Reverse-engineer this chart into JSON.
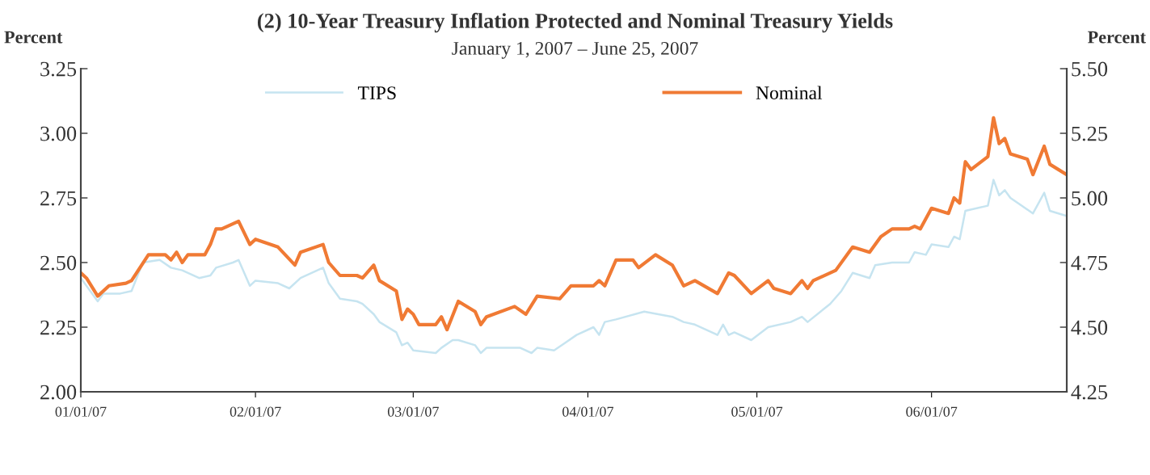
{
  "chart_data": {
    "type": "line",
    "title": "(2) 10-Year Treasury Inflation Protected and Nominal Treasury Yields",
    "subtitle": "January 1, 2007 – June 25, 2007",
    "ylabel": "Percent",
    "y2label": "Percent",
    "xlim": [
      "2007-01-01",
      "2007-06-25"
    ],
    "xticks": [
      {
        "value": "2007-01-01",
        "label": "01/01/07"
      },
      {
        "value": "2007-02-01",
        "label": "02/01/07"
      },
      {
        "value": "2007-03-01",
        "label": "03/01/07"
      },
      {
        "value": "2007-04-01",
        "label": "04/01/07"
      },
      {
        "value": "2007-05-01",
        "label": "05/01/07"
      },
      {
        "value": "2007-06-01",
        "label": "06/01/07"
      }
    ],
    "ylim": [
      2.0,
      3.25
    ],
    "yticks": [
      {
        "value": 2.0,
        "label": "2.00"
      },
      {
        "value": 2.25,
        "label": "2.25"
      },
      {
        "value": 2.5,
        "label": "2.50"
      },
      {
        "value": 2.75,
        "label": "2.75"
      },
      {
        "value": 3.0,
        "label": "3.00"
      },
      {
        "value": 3.25,
        "label": "3.25"
      }
    ],
    "y2lim": [
      4.25,
      5.5
    ],
    "y2ticks": [
      {
        "value": 4.25,
        "label": "4.25"
      },
      {
        "value": 4.5,
        "label": "4.50"
      },
      {
        "value": 4.75,
        "label": "4.75"
      },
      {
        "value": 5.0,
        "label": "5.00"
      },
      {
        "value": 5.25,
        "label": "5.25"
      },
      {
        "value": 5.5,
        "label": "5.50"
      }
    ],
    "grid": false,
    "legend": "top",
    "marker": "none",
    "line_style": "solid",
    "series": [
      {
        "name": "TIPS",
        "color": "#c6e4f0",
        "x": [
          "2007-01-01",
          "2007-01-04",
          "2007-01-05",
          "2007-01-08",
          "2007-01-10",
          "2007-01-12",
          "2007-01-15",
          "2007-01-17",
          "2007-01-19",
          "2007-01-22",
          "2007-01-24",
          "2007-01-25",
          "2007-01-28",
          "2007-01-29",
          "2007-01-31",
          "2007-02-01",
          "2007-02-05",
          "2007-02-07",
          "2007-02-09",
          "2007-02-13",
          "2007-02-14",
          "2007-02-16",
          "2007-02-19",
          "2007-02-20",
          "2007-02-22",
          "2007-02-23",
          "2007-02-26",
          "2007-02-27",
          "2007-02-28",
          "2007-03-01",
          "2007-03-05",
          "2007-03-06",
          "2007-03-08",
          "2007-03-09",
          "2007-03-12",
          "2007-03-13",
          "2007-03-14",
          "2007-03-19",
          "2007-03-20",
          "2007-03-22",
          "2007-03-23",
          "2007-03-26",
          "2007-03-28",
          "2007-03-30",
          "2007-04-02",
          "2007-04-03",
          "2007-04-04",
          "2007-04-06",
          "2007-04-11",
          "2007-04-16",
          "2007-04-18",
          "2007-04-20",
          "2007-04-23",
          "2007-04-24",
          "2007-04-25",
          "2007-04-26",
          "2007-04-27",
          "2007-04-30",
          "2007-05-03",
          "2007-05-07",
          "2007-05-09",
          "2007-05-10",
          "2007-05-14",
          "2007-05-16",
          "2007-05-18",
          "2007-05-21",
          "2007-05-22",
          "2007-05-25",
          "2007-05-28",
          "2007-05-29",
          "2007-05-31",
          "2007-06-01",
          "2007-06-04",
          "2007-06-05",
          "2007-06-06",
          "2007-06-07",
          "2007-06-11",
          "2007-06-12",
          "2007-06-13",
          "2007-06-14",
          "2007-06-15",
          "2007-06-19",
          "2007-06-21",
          "2007-06-22",
          "2007-06-25"
        ],
        "values": [
          2.44,
          2.35,
          2.38,
          2.38,
          2.39,
          2.5,
          2.51,
          2.48,
          2.47,
          2.44,
          2.45,
          2.48,
          2.5,
          2.51,
          2.41,
          2.43,
          2.42,
          2.4,
          2.44,
          2.48,
          2.42,
          2.36,
          2.35,
          2.34,
          2.3,
          2.27,
          2.23,
          2.18,
          2.19,
          2.16,
          2.15,
          2.17,
          2.2,
          2.2,
          2.18,
          2.15,
          2.17,
          2.17,
          2.17,
          2.15,
          2.17,
          2.16,
          2.19,
          2.22,
          2.25,
          2.22,
          2.27,
          2.28,
          2.31,
          2.29,
          2.27,
          2.26,
          2.23,
          2.22,
          2.26,
          2.22,
          2.23,
          2.2,
          2.25,
          2.27,
          2.29,
          2.27,
          2.34,
          2.39,
          2.46,
          2.44,
          2.49,
          2.5,
          2.5,
          2.54,
          2.53,
          2.57,
          2.56,
          2.6,
          2.59,
          2.7,
          2.72,
          2.82,
          2.76,
          2.78,
          2.75,
          2.69,
          2.77,
          2.7,
          2.68
        ]
      },
      {
        "name": "Nominal",
        "color": "#f07a34",
        "axis": "y2",
        "x": [
          "2007-01-01",
          "2007-01-02",
          "2007-01-04",
          "2007-01-06",
          "2007-01-09",
          "2007-01-10",
          "2007-01-13",
          "2007-01-16",
          "2007-01-17",
          "2007-01-18",
          "2007-01-19",
          "2007-01-20",
          "2007-01-23",
          "2007-01-24",
          "2007-01-25",
          "2007-01-26",
          "2007-01-29",
          "2007-01-31",
          "2007-02-01",
          "2007-02-05",
          "2007-02-08",
          "2007-02-09",
          "2007-02-13",
          "2007-02-14",
          "2007-02-16",
          "2007-02-19",
          "2007-02-20",
          "2007-02-22",
          "2007-02-23",
          "2007-02-26",
          "2007-02-27",
          "2007-02-28",
          "2007-03-01",
          "2007-03-02",
          "2007-03-05",
          "2007-03-06",
          "2007-03-07",
          "2007-03-09",
          "2007-03-12",
          "2007-03-13",
          "2007-03-14",
          "2007-03-19",
          "2007-03-21",
          "2007-03-23",
          "2007-03-27",
          "2007-03-29",
          "2007-04-02",
          "2007-04-03",
          "2007-04-04",
          "2007-04-06",
          "2007-04-09",
          "2007-04-10",
          "2007-04-13",
          "2007-04-16",
          "2007-04-18",
          "2007-04-20",
          "2007-04-24",
          "2007-04-26",
          "2007-04-27",
          "2007-04-30",
          "2007-05-03",
          "2007-05-04",
          "2007-05-07",
          "2007-05-09",
          "2007-05-10",
          "2007-05-11",
          "2007-05-15",
          "2007-05-18",
          "2007-05-21",
          "2007-05-23",
          "2007-05-25",
          "2007-05-28",
          "2007-05-29",
          "2007-05-30",
          "2007-06-01",
          "2007-06-04",
          "2007-06-05",
          "2007-06-06",
          "2007-06-07",
          "2007-06-08",
          "2007-06-11",
          "2007-06-12",
          "2007-06-13",
          "2007-06-14",
          "2007-06-15",
          "2007-06-18",
          "2007-06-19",
          "2007-06-21",
          "2007-06-22",
          "2007-06-25"
        ],
        "values": [
          4.71,
          4.69,
          4.62,
          4.66,
          4.67,
          4.68,
          4.78,
          4.78,
          4.76,
          4.79,
          4.75,
          4.78,
          4.78,
          4.82,
          4.88,
          4.88,
          4.91,
          4.82,
          4.84,
          4.81,
          4.74,
          4.79,
          4.82,
          4.75,
          4.7,
          4.7,
          4.69,
          4.74,
          4.68,
          4.64,
          4.53,
          4.57,
          4.55,
          4.51,
          4.51,
          4.54,
          4.49,
          4.6,
          4.56,
          4.51,
          4.54,
          4.58,
          4.55,
          4.62,
          4.61,
          4.66,
          4.66,
          4.68,
          4.66,
          4.76,
          4.76,
          4.73,
          4.78,
          4.74,
          4.66,
          4.68,
          4.63,
          4.71,
          4.7,
          4.63,
          4.68,
          4.65,
          4.63,
          4.68,
          4.65,
          4.68,
          4.72,
          4.81,
          4.79,
          4.85,
          4.88,
          4.88,
          4.89,
          4.88,
          4.96,
          4.94,
          5.0,
          4.98,
          5.14,
          5.11,
          5.16,
          5.31,
          5.21,
          5.23,
          5.17,
          5.15,
          5.09,
          5.2,
          5.13,
          5.09
        ]
      }
    ]
  }
}
